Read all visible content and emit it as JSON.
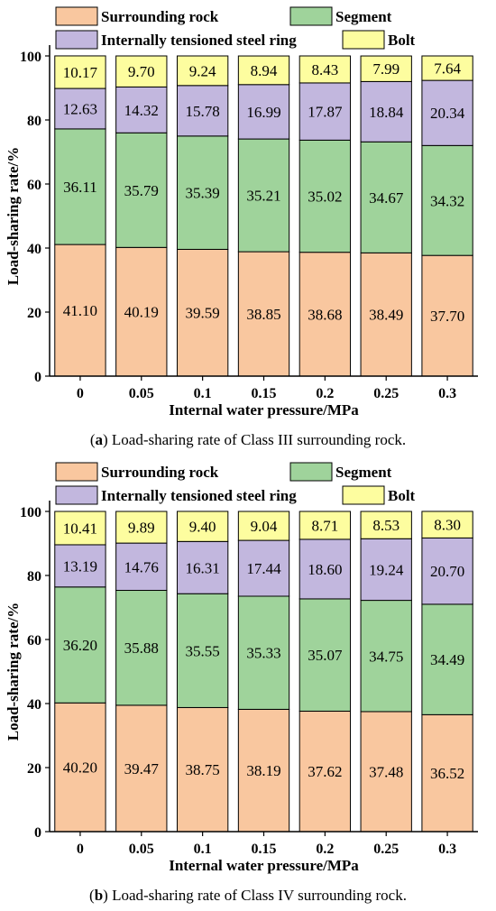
{
  "chart_data": [
    {
      "type": "bar",
      "stacked": true,
      "categories": [
        "0",
        "0.05",
        "0.1",
        "0.15",
        "0.2",
        "0.25",
        "0.3"
      ],
      "series": [
        {
          "name": "Surrounding rock",
          "color": "#f9c79f",
          "values": [
            41.1,
            40.19,
            39.59,
            38.85,
            38.68,
            38.49,
            37.7
          ]
        },
        {
          "name": "Segment",
          "color": "#9fd39b",
          "values": [
            36.11,
            35.79,
            35.39,
            35.21,
            35.02,
            34.67,
            34.32
          ]
        },
        {
          "name": "Internally tensioned steel ring",
          "color": "#c2b7de",
          "values": [
            12.63,
            14.32,
            15.78,
            16.99,
            17.87,
            18.84,
            20.34
          ]
        },
        {
          "name": "Bolt",
          "color": "#fdfd9f",
          "values": [
            10.17,
            9.7,
            9.24,
            8.94,
            8.43,
            7.99,
            7.64
          ]
        }
      ],
      "xlabel": "Internal water pressure/MPa",
      "ylabel": "Load-sharing rate/%",
      "ylim": [
        0,
        100
      ],
      "yticks": [
        0,
        20,
        40,
        60,
        80,
        100
      ],
      "legend_position": "top",
      "caption": {
        "label": "a",
        "text": ") Load-sharing rate of Class III surrounding rock."
      }
    },
    {
      "type": "bar",
      "stacked": true,
      "categories": [
        "0",
        "0.05",
        "0.1",
        "0.15",
        "0.2",
        "0.25",
        "0.3"
      ],
      "series": [
        {
          "name": "Surrounding rock",
          "color": "#f9c79f",
          "values": [
            40.2,
            39.47,
            38.75,
            38.19,
            37.62,
            37.48,
            36.52
          ]
        },
        {
          "name": "Segment",
          "color": "#9fd39b",
          "values": [
            36.2,
            35.88,
            35.55,
            35.33,
            35.07,
            34.75,
            34.49
          ]
        },
        {
          "name": "Internally tensioned steel ring",
          "color": "#c2b7de",
          "values": [
            13.19,
            14.76,
            16.31,
            17.44,
            18.6,
            19.24,
            20.7
          ]
        },
        {
          "name": "Bolt",
          "color": "#fdfd9f",
          "values": [
            10.41,
            9.89,
            9.4,
            9.04,
            8.71,
            8.53,
            8.3
          ]
        }
      ],
      "xlabel": "Internal water pressure/MPa",
      "ylabel": "Load-sharing rate/%",
      "ylim": [
        0,
        100
      ],
      "yticks": [
        0,
        20,
        40,
        60,
        80,
        100
      ],
      "legend_position": "top",
      "caption": {
        "label": "b",
        "text": ") Load-sharing rate of Class IV surrounding rock."
      }
    }
  ]
}
